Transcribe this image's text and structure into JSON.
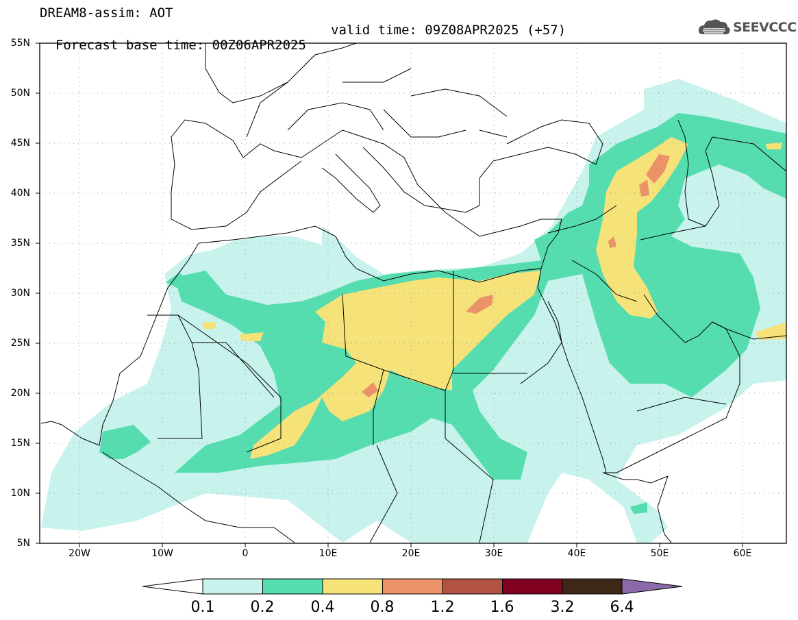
{
  "header": {
    "title": "DREAM8-assim: AOT",
    "base_time": "Forecast base time: 00Z06APR2025",
    "valid_time": "valid time: 09Z08APR2025 (+57)"
  },
  "logo": {
    "text": "SEEVCCC",
    "icon": "cloud-icon"
  },
  "map": {
    "lon_range": [
      -25,
      65
    ],
    "lat_range": [
      5,
      55
    ],
    "lat_labels": [
      "55N",
      "50N",
      "45N",
      "40N",
      "35N",
      "30N",
      "25N",
      "20N",
      "15N",
      "10N",
      "5N"
    ],
    "lon_labels": [
      "20W",
      "10W",
      "0",
      "10E",
      "20E",
      "30E",
      "40E",
      "50E",
      "60E"
    ],
    "gridlines": "dotted"
  },
  "colorbar": {
    "levels": [
      "0.1",
      "0.2",
      "0.4",
      "0.8",
      "1.2",
      "1.6",
      "3.2",
      "6.4"
    ],
    "colors": [
      "#c8f2ec",
      "#55dcaf",
      "#f5e37a",
      "#eb9269",
      "#b15242",
      "#800020",
      "#3d2818",
      "#8a6aa8"
    ],
    "low_end_color": "#ffffff"
  }
}
